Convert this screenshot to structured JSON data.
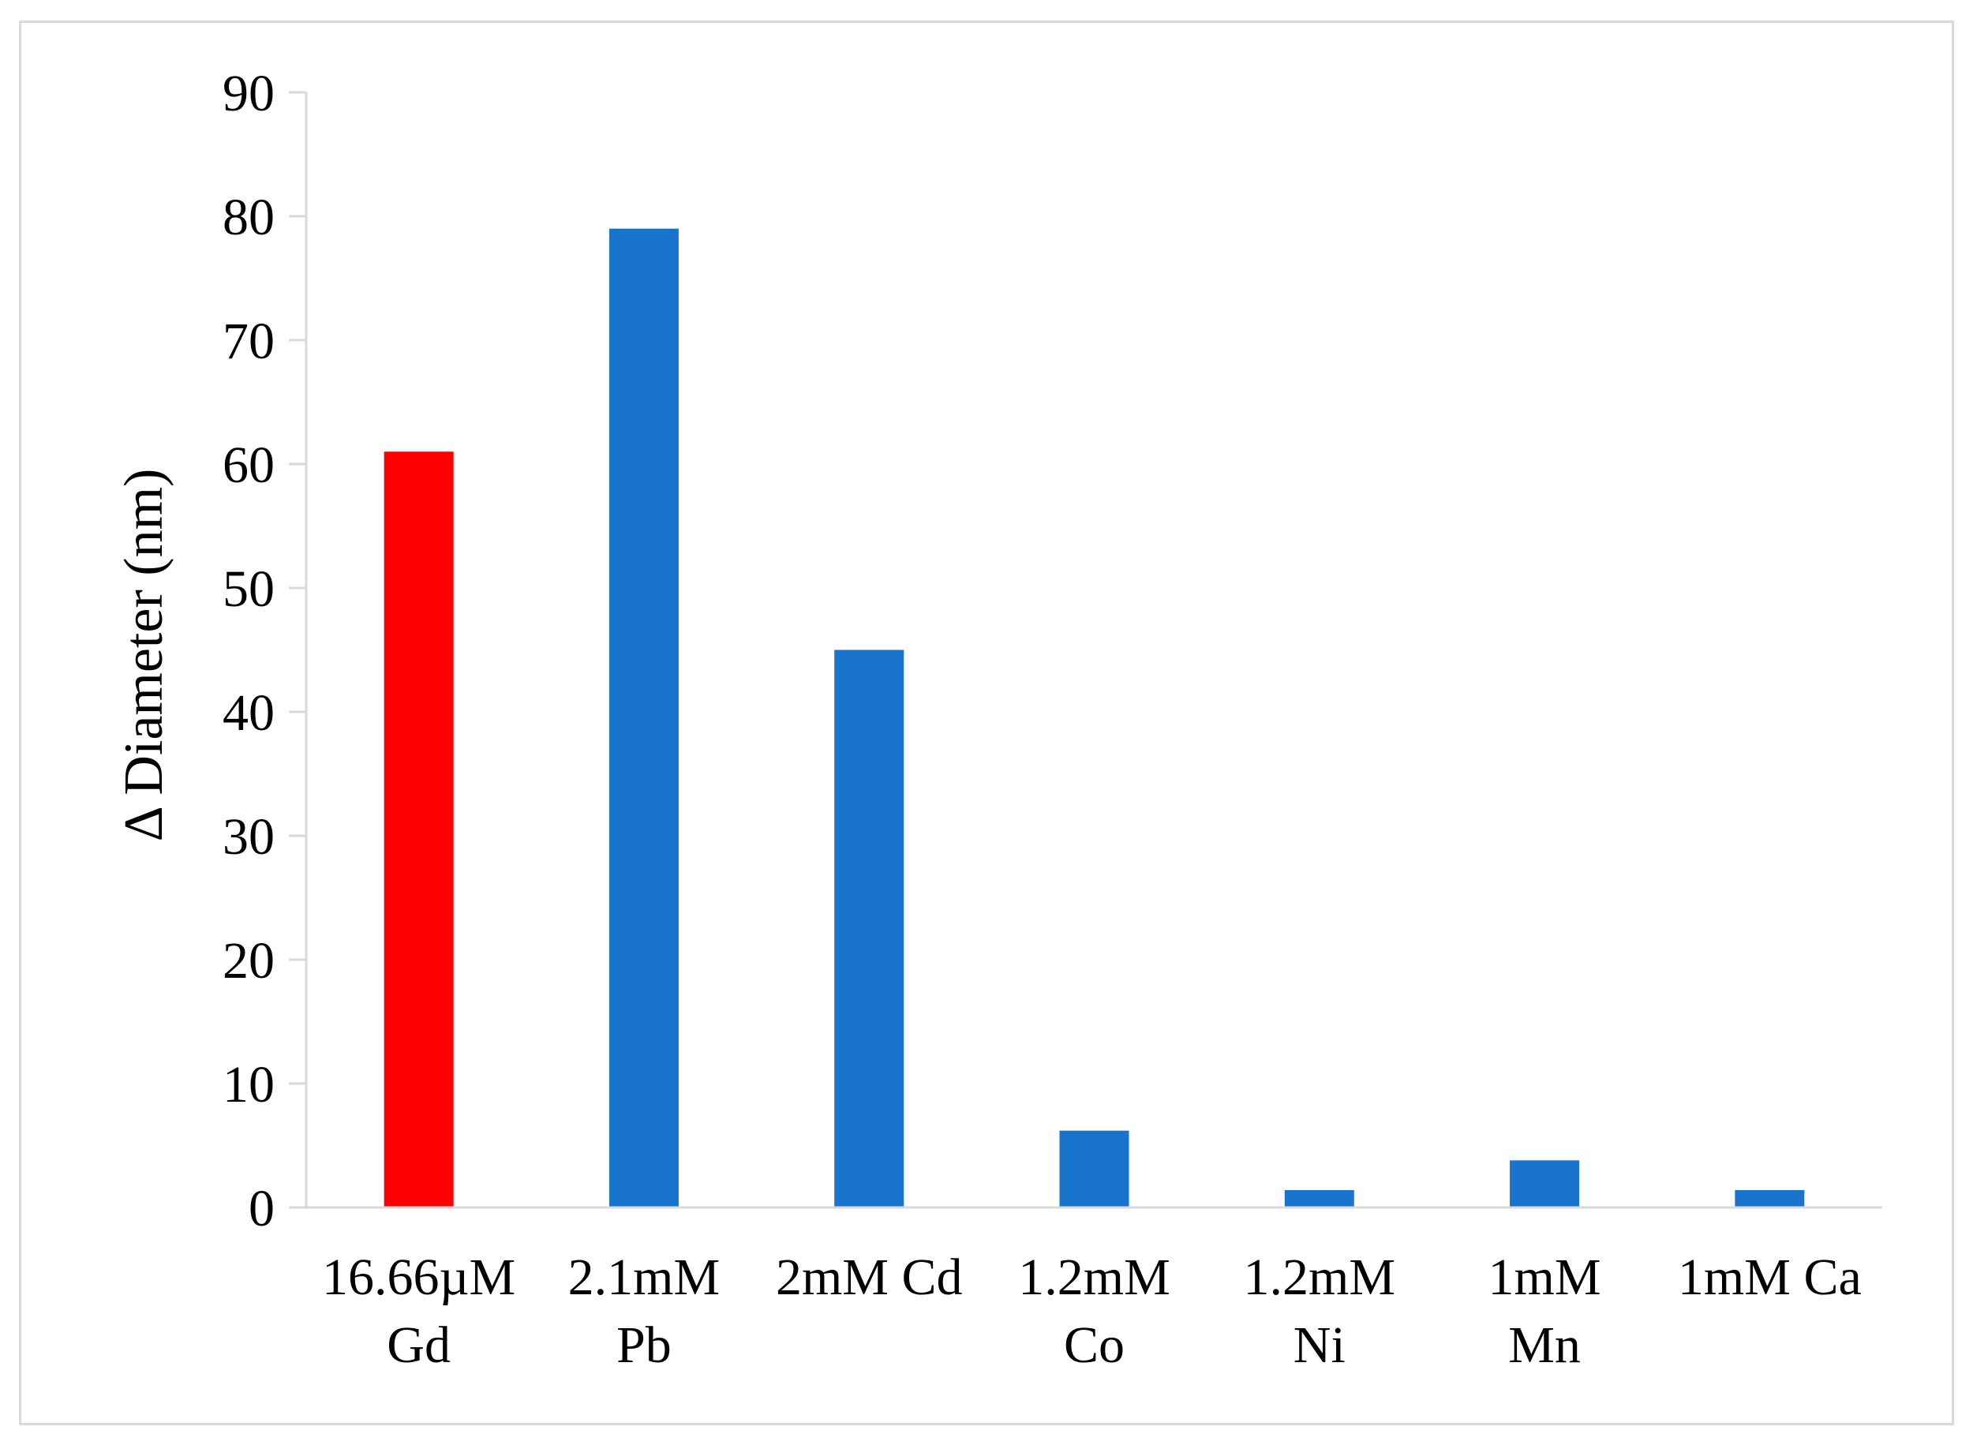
{
  "chart_data": {
    "type": "bar",
    "title": "",
    "xlabel": "",
    "ylabel": "Δ Diameter  (nm)",
    "ylim": [
      0,
      90
    ],
    "yticks": [
      0,
      10,
      20,
      30,
      40,
      50,
      60,
      70,
      80,
      90
    ],
    "grid": false,
    "legend": "none",
    "categories": [
      [
        "16.66µM",
        "Gd"
      ],
      [
        "2.1mM",
        "Pb"
      ],
      [
        "2mM Cd"
      ],
      [
        "1.2mM",
        "Co"
      ],
      [
        "1.2mM",
        "Ni"
      ],
      [
        "1mM",
        "Mn"
      ],
      [
        "1mM Ca"
      ]
    ],
    "values": [
      61,
      79,
      45,
      6.2,
      1.4,
      3.8,
      1.4
    ],
    "bar_colors": [
      "#ff0000",
      "#1874cd",
      "#1874cd",
      "#1874cd",
      "#1874cd",
      "#1874cd",
      "#1874cd"
    ],
    "axis_color": "#d9d9d9"
  }
}
